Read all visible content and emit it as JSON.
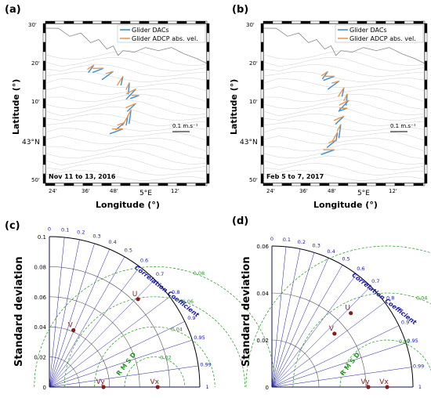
{
  "colors": {
    "dac": "#3a8fd6",
    "adcp": "#f0964a",
    "rms": "#1a9a1a",
    "corr": "#1a1aa6",
    "point": "#8b1a1a",
    "contour": "#cfcfcf"
  },
  "maps": [
    {
      "panel_label": "(a)",
      "date_label": "Nov 11 to 13, 2016",
      "legend": [
        "Glider DACs",
        "Glider ADCP abs. vel."
      ],
      "scale_label": "0.1 m.s⁻¹",
      "xlabel": "Longitude (°)",
      "ylabel": "Latitude (°)",
      "lat_ticks": [
        "30'",
        "20'",
        "10'",
        "43°N",
        "50'"
      ],
      "lon_ticks": [
        "24'",
        "36'",
        "48'",
        "5°E",
        "12'"
      ],
      "track": [
        [
          0.3,
          0.26
        ],
        [
          0.36,
          0.28
        ],
        [
          0.42,
          0.3
        ],
        [
          0.48,
          0.33
        ],
        [
          0.52,
          0.37
        ],
        [
          0.56,
          0.41
        ],
        [
          0.58,
          0.45
        ],
        [
          0.56,
          0.5
        ],
        [
          0.53,
          0.54
        ],
        [
          0.51,
          0.58
        ],
        [
          0.49,
          0.62
        ],
        [
          0.48,
          0.66
        ]
      ]
    },
    {
      "panel_label": "(b)",
      "date_label": "Feb 5 to 7, 2017",
      "legend": [
        "Glider DACs",
        "Glider ADCP abs. vel."
      ],
      "scale_label": "0.1 m.s⁻¹",
      "xlabel": "Longitude (°)",
      "ylabel": "Latitude (°)",
      "lat_ticks": [
        "30'",
        "20'",
        "10'",
        "43°N",
        "50'"
      ],
      "lon_ticks": [
        "24'",
        "36'",
        "48'",
        "5°E",
        "12'"
      ],
      "track": [
        [
          0.4,
          0.3
        ],
        [
          0.44,
          0.33
        ],
        [
          0.47,
          0.36
        ],
        [
          0.5,
          0.4
        ],
        [
          0.52,
          0.44
        ],
        [
          0.53,
          0.48
        ],
        [
          0.52,
          0.53
        ],
        [
          0.5,
          0.58
        ],
        [
          0.48,
          0.63
        ],
        [
          0.46,
          0.68
        ],
        [
          0.45,
          0.73
        ],
        [
          0.44,
          0.79
        ]
      ]
    }
  ],
  "chart_data": [
    {
      "type": "scatter",
      "panel_label": "(c)",
      "ylabel": "Standard deviation",
      "r_max": 0.1,
      "r_ticks": [
        "0",
        "0.02",
        "0.04",
        "0.06",
        "0.08",
        "0.1"
      ],
      "corr_title": "Correlation Coefficient",
      "corr_values": [
        0,
        0.1,
        0.2,
        0.3,
        0.4,
        0.5,
        0.6,
        0.7,
        0.8,
        0.9,
        0.95,
        0.99,
        1
      ],
      "rms_title": "R M S D",
      "rms_values": [
        0.02,
        0.04,
        0.06,
        0.08
      ],
      "rms_center": 0.07,
      "points": [
        {
          "label": "U",
          "corr": 0.71,
          "std": 0.083
        },
        {
          "label": "V",
          "corr": 0.39,
          "std": 0.041
        },
        {
          "label": "Vy",
          "corr": 1.0,
          "std": 0.036
        },
        {
          "label": "Vx",
          "corr": 1.0,
          "std": 0.072
        }
      ]
    },
    {
      "type": "scatter",
      "panel_label": "(d)",
      "ylabel": "Standard deviation",
      "r_max": 0.06,
      "r_ticks": [
        "0",
        "0.02",
        "0.04",
        "0.06"
      ],
      "corr_title": "Correlation Coefficient",
      "corr_values": [
        0,
        0.1,
        0.2,
        0.3,
        0.4,
        0.5,
        0.6,
        0.7,
        0.8,
        0.9,
        0.95,
        0.99,
        1
      ],
      "rms_title": "R M S D",
      "rms_values": [
        0.02,
        0.04,
        0.06
      ],
      "rms_center": 0.049,
      "points": [
        {
          "label": "U",
          "corr": 0.73,
          "std": 0.046
        },
        {
          "label": "V",
          "corr": 0.76,
          "std": 0.035
        },
        {
          "label": "Vy",
          "corr": 1.0,
          "std": 0.041
        },
        {
          "label": "Vx",
          "corr": 1.0,
          "std": 0.049
        }
      ]
    }
  ]
}
